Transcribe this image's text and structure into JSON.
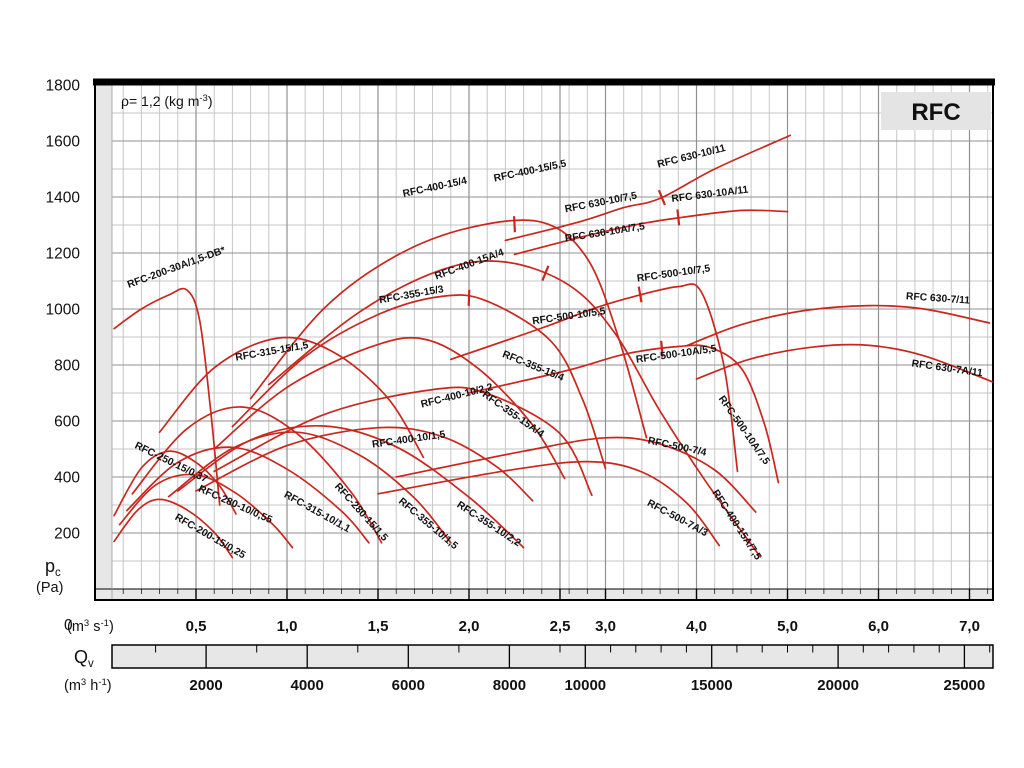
{
  "chart_data": {
    "type": "line",
    "title": "RFC",
    "density_annotation": {
      "pre": "ρ= 1,2 (kg m",
      "exp": "-3",
      "post": ")"
    },
    "y_axis": {
      "label": "p",
      "label_sub": "c",
      "unit": "(Pa)",
      "zero_label": "0",
      "min": 0,
      "max": 1800,
      "minor_step": 100,
      "tick_labels": [
        "1800",
        "1600",
        "1400",
        "1200",
        "1000",
        "800",
        "600",
        "400",
        "200"
      ],
      "tick_values": [
        1800,
        1600,
        1400,
        1200,
        1000,
        800,
        600,
        400,
        200
      ]
    },
    "x_ax_m3s": {
      "unit": {
        "pre": "(m",
        "exp1": "3",
        "mid": " s",
        "exp2": "-1",
        "post": ")"
      },
      "tick_labels": [
        "0,5",
        "1,0",
        "1,5",
        "2,0",
        "2,5",
        "3,0",
        "4,0",
        "5,0",
        "6,0",
        "7,0"
      ],
      "tick_values": [
        0.5,
        1,
        1.5,
        2,
        2.5,
        3,
        4,
        5,
        6,
        7
      ],
      "scale": "segmented linear, scale break at 2,5 m³ s⁻¹"
    },
    "x_ax_m3h": {
      "label": {
        "pre": "Q",
        "sub": "v"
      },
      "unit": {
        "pre": "(m",
        "exp1": "3",
        "mid": " h",
        "exp2": "-1",
        "post": ")"
      },
      "tick_labels": [
        "2000",
        "4000",
        "6000",
        "8000",
        "10000",
        "15000",
        "20000",
        "25000"
      ],
      "tick_values": [
        2000,
        4000,
        6000,
        8000,
        10000,
        15000,
        20000,
        25000
      ]
    },
    "colors": {
      "curve": "#c9271e",
      "label": "#111111",
      "grid_minor": "#c6c6c6",
      "grid_major": "#909090",
      "frame": "#000000",
      "strip_bg": "#e7e7e7",
      "brand_bg": "#e4e4e4"
    },
    "series": [
      {
        "name": "RFC-200-30A/1,5-DB*",
        "points": [
          [
            0.05,
            930
          ],
          [
            0.2,
            1000
          ],
          [
            0.35,
            1050
          ],
          [
            0.45,
            1068
          ],
          [
            0.52,
            960
          ],
          [
            0.58,
            640
          ],
          [
            0.63,
            300
          ]
        ],
        "labels": [
          {
            "text": "RFC-200-30A/1,5-DB*",
            "f": 0.13,
            "p": 1075,
            "angle": -20
          }
        ]
      },
      {
        "name": "RFC-400-15",
        "points": [
          [
            0.8,
            680
          ],
          [
            1.2,
            1000
          ],
          [
            1.6,
            1190
          ],
          [
            2.0,
            1290
          ],
          [
            2.4,
            1310
          ],
          [
            2.8,
            1180
          ],
          [
            3.15,
            890
          ],
          [
            3.45,
            540
          ]
        ],
        "tick": {
          "f": 2.25,
          "p": 1303,
          "angle": -3
        },
        "labels": [
          {
            "text": "RFC-400-15/4",
            "f": 1.64,
            "p": 1400,
            "angle": -12
          },
          {
            "text": "RFC-400-15/5,5",
            "f": 2.14,
            "p": 1455,
            "angle": -12
          }
        ]
      },
      {
        "name": "RFC 630-10",
        "points": [
          [
            2.2,
            1245
          ],
          [
            2.7,
            1310
          ],
          [
            3.2,
            1362
          ],
          [
            3.6,
            1395
          ],
          [
            4.2,
            1500
          ],
          [
            5.03,
            1620
          ]
        ],
        "tick": {
          "f": 3.62,
          "p": 1398,
          "angle": -22
        },
        "labels": [
          {
            "text": "RFC 630-10/7,5",
            "f": 2.56,
            "p": 1345,
            "angle": -11
          },
          {
            "text": "RFC 630-10/11",
            "f": 3.58,
            "p": 1505,
            "angle": -14
          }
        ]
      },
      {
        "name": "RFC 630-10A",
        "points": [
          [
            2.25,
            1195
          ],
          [
            2.8,
            1262
          ],
          [
            3.4,
            1305
          ],
          [
            3.9,
            1330
          ],
          [
            4.5,
            1352
          ],
          [
            5.0,
            1348
          ]
        ],
        "tick": {
          "f": 3.8,
          "p": 1327,
          "angle": -6
        },
        "labels": [
          {
            "text": "RFC 630-10A/7,5",
            "f": 2.56,
            "p": 1240,
            "angle": -9
          },
          {
            "text": "RFC 630-10A/11",
            "f": 3.73,
            "p": 1382,
            "angle": -7
          }
        ]
      },
      {
        "name": "RFC 630-7/11",
        "points": [
          [
            3.9,
            870
          ],
          [
            4.5,
            945
          ],
          [
            5.2,
            995
          ],
          [
            5.9,
            1012
          ],
          [
            6.5,
            1000
          ],
          [
            7.22,
            950
          ]
        ],
        "labels": [
          {
            "text": "RFC 630-7/11",
            "f": 6.3,
            "p": 1035,
            "angle": 4
          }
        ]
      },
      {
        "name": "RFC 630-7A/11",
        "points": [
          [
            4.0,
            750
          ],
          [
            4.6,
            822
          ],
          [
            5.3,
            865
          ],
          [
            5.9,
            870
          ],
          [
            6.5,
            833
          ],
          [
            7.25,
            740
          ]
        ],
        "labels": [
          {
            "text": "RFC 630-7A/11",
            "f": 6.36,
            "p": 795,
            "angle": 8
          }
        ]
      },
      {
        "name": "RFC-500-10",
        "points": [
          [
            1.9,
            820
          ],
          [
            2.4,
            932
          ],
          [
            2.9,
            1005
          ],
          [
            3.35,
            1048
          ],
          [
            3.8,
            1080
          ],
          [
            4.05,
            1062
          ],
          [
            4.3,
            800
          ],
          [
            4.45,
            420
          ]
        ],
        "tick": {
          "f": 3.38,
          "p": 1052,
          "angle": -10
        },
        "labels": [
          {
            "text": "RFC-500-10/5,5",
            "f": 2.35,
            "p": 945,
            "angle": -8
          },
          {
            "text": "RFC-500-10/7,5",
            "f": 3.35,
            "p": 1098,
            "angle": -8
          }
        ]
      },
      {
        "name": "RFC-500-10A",
        "points": [
          [
            2.0,
            700
          ],
          [
            2.6,
            782
          ],
          [
            3.2,
            838
          ],
          [
            3.8,
            866
          ],
          [
            4.15,
            862
          ],
          [
            4.5,
            785
          ],
          [
            4.75,
            585
          ],
          [
            4.9,
            380
          ]
        ],
        "tick": {
          "f": 3.62,
          "p": 858,
          "angle": -5
        },
        "labels": [
          {
            "text": "RFC-500-10A/5,5",
            "f": 3.34,
            "p": 808,
            "angle": -8
          },
          {
            "text": "RFC-500-10A/7,5",
            "f": 4.24,
            "p": 680,
            "angle": 55
          }
        ]
      },
      {
        "name": "RFC-500-7/4",
        "points": [
          [
            1.6,
            400
          ],
          [
            2.3,
            492
          ],
          [
            3.0,
            540
          ],
          [
            3.6,
            518
          ],
          [
            4.2,
            425
          ],
          [
            4.65,
            275
          ]
        ],
        "labels": [
          {
            "text": "RFC-500-7/4",
            "f": 3.46,
            "p": 520,
            "angle": 12
          }
        ]
      },
      {
        "name": "RFC-500-7A/3",
        "points": [
          [
            1.5,
            340
          ],
          [
            2.2,
            422
          ],
          [
            2.8,
            455
          ],
          [
            3.4,
            418
          ],
          [
            3.9,
            305
          ],
          [
            4.25,
            155
          ]
        ],
        "labels": [
          {
            "text": "RFC-500-7A/3",
            "f": 3.45,
            "p": 300,
            "angle": 28
          }
        ]
      },
      {
        "name": "RFC-400-15A",
        "points": [
          [
            0.9,
            730
          ],
          [
            1.4,
            990
          ],
          [
            1.85,
            1140
          ],
          [
            2.2,
            1168
          ],
          [
            2.6,
            1085
          ],
          [
            3.1,
            915
          ],
          [
            3.6,
            635
          ],
          [
            4.1,
            385
          ],
          [
            4.7,
            115
          ]
        ],
        "tick": {
          "f": 2.42,
          "p": 1128,
          "angle": 22
        },
        "labels": [
          {
            "text": "RFC-400-15A/4",
            "f": 1.82,
            "p": 1105,
            "angle": -20
          },
          {
            "text": "RFC-400-15A/7,5",
            "f": 4.17,
            "p": 345,
            "angle": 57
          }
        ]
      },
      {
        "name": "RFC-355-15",
        "points": [
          [
            0.7,
            580
          ],
          [
            1.1,
            830
          ],
          [
            1.5,
            980
          ],
          [
            1.85,
            1045
          ],
          [
            2.1,
            1028
          ],
          [
            2.45,
            885
          ],
          [
            2.75,
            675
          ],
          [
            3.0,
            430
          ]
        ],
        "tick": {
          "f": 2.0,
          "p": 1040,
          "angle": 2
        },
        "labels": [
          {
            "text": "RFC-355-15/3",
            "f": 1.51,
            "p": 1020,
            "angle": -10
          },
          {
            "text": "RFC-355-15/4",
            "f": 2.18,
            "p": 830,
            "angle": 22
          }
        ]
      },
      {
        "name": "RFC-355-15A/4",
        "points": [
          [
            0.6,
            500
          ],
          [
            1.0,
            720
          ],
          [
            1.45,
            862
          ],
          [
            1.75,
            893
          ],
          [
            2.05,
            788
          ],
          [
            2.35,
            585
          ],
          [
            2.55,
            395
          ]
        ],
        "labels": [
          {
            "text": "RFC-355-15A/4",
            "f": 2.07,
            "p": 690,
            "angle": 35
          }
        ]
      },
      {
        "name": "RFC-315-15/1,5",
        "points": [
          [
            0.3,
            560
          ],
          [
            0.6,
            790
          ],
          [
            0.95,
            896
          ],
          [
            1.25,
            848
          ],
          [
            1.55,
            685
          ],
          [
            1.75,
            470
          ]
        ],
        "labels": [
          {
            "text": "RFC-315-15/1,5",
            "f": 0.72,
            "p": 815,
            "angle": -10
          }
        ]
      },
      {
        "name": "RFC-400-10/2,2",
        "points": [
          [
            0.6,
            420
          ],
          [
            1.2,
            622
          ],
          [
            1.8,
            712
          ],
          [
            2.1,
            698
          ],
          [
            2.5,
            555
          ],
          [
            2.85,
            335
          ]
        ],
        "labels": [
          {
            "text": "RFC-400-10/2,2",
            "f": 1.74,
            "p": 648,
            "angle": -14
          }
        ]
      },
      {
        "name": "RFC-400-10/1,5",
        "points": [
          [
            0.5,
            350
          ],
          [
            1.0,
            512
          ],
          [
            1.5,
            576
          ],
          [
            1.85,
            545
          ],
          [
            2.15,
            438
          ],
          [
            2.35,
            315
          ]
        ],
        "labels": [
          {
            "text": "RFC-400-10/1,5",
            "f": 1.47,
            "p": 505,
            "angle": -8
          }
        ]
      },
      {
        "name": "RFC-355-10/1,5",
        "points": [
          [
            0.35,
            330
          ],
          [
            0.7,
            502
          ],
          [
            1.05,
            560
          ],
          [
            1.4,
            478
          ],
          [
            1.7,
            325
          ],
          [
            1.9,
            165
          ]
        ],
        "labels": [
          {
            "text": "RFC-355-10/1,5",
            "f": 1.61,
            "p": 310,
            "angle": 40
          }
        ]
      },
      {
        "name": "RFC-355-10/2,2",
        "points": [
          [
            0.4,
            350
          ],
          [
            0.8,
            532
          ],
          [
            1.2,
            582
          ],
          [
            1.6,
            508
          ],
          [
            2.0,
            328
          ],
          [
            2.3,
            148
          ]
        ],
        "labels": [
          {
            "text": "RFC-355-10/2,2",
            "f": 1.93,
            "p": 295,
            "angle": 33
          }
        ]
      },
      {
        "name": "RFC-280-15/1,5",
        "points": [
          [
            0.15,
            340
          ],
          [
            0.45,
            572
          ],
          [
            0.75,
            650
          ],
          [
            1.05,
            558
          ],
          [
            1.35,
            348
          ],
          [
            1.52,
            165
          ]
        ],
        "labels": [
          {
            "text": "RFC-280-15/1,5",
            "f": 1.26,
            "p": 365,
            "angle": 48
          }
        ]
      },
      {
        "name": "RFC-315-10/1,1",
        "points": [
          [
            0.12,
            280
          ],
          [
            0.4,
            452
          ],
          [
            0.7,
            506
          ],
          [
            1.0,
            428
          ],
          [
            1.3,
            278
          ],
          [
            1.45,
            165
          ]
        ],
        "labels": [
          {
            "text": "RFC-315-10/1,1",
            "f": 0.98,
            "p": 330,
            "angle": 29
          }
        ]
      },
      {
        "name": "RFC-280-10/0,55",
        "points": [
          [
            0.08,
            230
          ],
          [
            0.28,
            372
          ],
          [
            0.5,
            408
          ],
          [
            0.72,
            342
          ],
          [
            0.92,
            232
          ],
          [
            1.03,
            148
          ]
        ],
        "labels": [
          {
            "text": "RFC-280-10/0,55",
            "f": 0.51,
            "p": 350,
            "angle": 24
          }
        ]
      },
      {
        "name": "RFC-250-15/0,37",
        "points": [
          [
            0.05,
            262
          ],
          [
            0.2,
            432
          ],
          [
            0.35,
            492
          ],
          [
            0.5,
            452
          ],
          [
            0.63,
            368
          ],
          [
            0.72,
            268
          ]
        ],
        "labels": [
          {
            "text": "RFC-250-15/0,37",
            "f": 0.16,
            "p": 505,
            "angle": 26
          }
        ]
      },
      {
        "name": "RFC-200-15/0,25",
        "points": [
          [
            0.05,
            170
          ],
          [
            0.18,
            282
          ],
          [
            0.3,
            320
          ],
          [
            0.45,
            283
          ],
          [
            0.6,
            202
          ],
          [
            0.7,
            112
          ]
        ],
        "labels": [
          {
            "text": "RFC-200-15/0,25",
            "f": 0.38,
            "p": 250,
            "angle": 30
          }
        ]
      }
    ]
  }
}
